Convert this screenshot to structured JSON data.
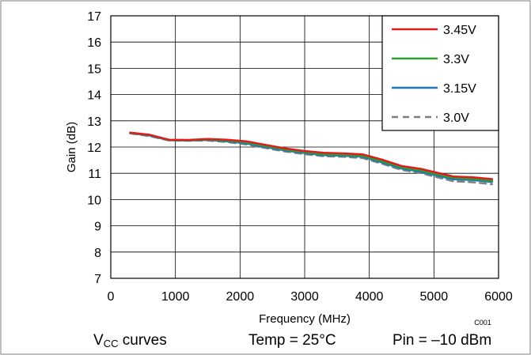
{
  "chart_data": {
    "type": "line",
    "xlabel": "Frequency (MHz)",
    "ylabel": "Gain (dB)",
    "xlim": [
      0,
      6000
    ],
    "ylim": [
      7,
      17
    ],
    "xticks": [
      "0",
      "1000",
      "2000",
      "3000",
      "4000",
      "5000",
      "6000"
    ],
    "yticks": [
      "7",
      "8",
      "9",
      "10",
      "11",
      "12",
      "13",
      "14",
      "15",
      "16",
      "17"
    ],
    "grid": true,
    "legend_position": "top-right",
    "figure_code": "C001",
    "series": [
      {
        "name": "3.45V",
        "color": "#e31a1c",
        "dash": "solid",
        "x": [
          300,
          600,
          900,
          1200,
          1500,
          1800,
          2100,
          2400,
          2700,
          3000,
          3300,
          3600,
          3900,
          4200,
          4500,
          4800,
          5000,
          5300,
          5600,
          5900
        ],
        "y": [
          12.55,
          12.47,
          12.28,
          12.27,
          12.31,
          12.28,
          12.22,
          12.08,
          11.95,
          11.85,
          11.78,
          11.76,
          11.72,
          11.52,
          11.28,
          11.17,
          11.05,
          10.88,
          10.85,
          10.78
        ]
      },
      {
        "name": "3.3V",
        "color": "#2ca02c",
        "dash": "solid",
        "x": [
          300,
          600,
          900,
          1200,
          1500,
          1800,
          2100,
          2400,
          2700,
          3000,
          3300,
          3600,
          3900,
          4200,
          4500,
          4800,
          5000,
          5300,
          5600,
          5900
        ],
        "y": [
          12.54,
          12.46,
          12.27,
          12.26,
          12.29,
          12.25,
          12.18,
          12.04,
          11.91,
          11.81,
          11.73,
          11.71,
          11.67,
          11.46,
          11.23,
          11.11,
          10.99,
          10.83,
          10.79,
          10.72
        ]
      },
      {
        "name": "3.15V",
        "color": "#1f77b4",
        "dash": "solid",
        "x": [
          300,
          600,
          900,
          1200,
          1500,
          1800,
          2100,
          2400,
          2700,
          3000,
          3300,
          3600,
          3900,
          4200,
          4500,
          4800,
          5000,
          5300,
          5600,
          5900
        ],
        "y": [
          12.53,
          12.44,
          12.26,
          12.25,
          12.27,
          12.22,
          12.14,
          12.0,
          11.87,
          11.77,
          11.69,
          11.67,
          11.63,
          11.41,
          11.18,
          11.06,
          10.94,
          10.77,
          10.74,
          10.67
        ]
      },
      {
        "name": "3.0V",
        "color": "#7f7f7f",
        "dash": "dashed",
        "x": [
          300,
          600,
          900,
          1200,
          1500,
          1800,
          2100,
          2400,
          2700,
          3000,
          3300,
          3600,
          3900,
          4200,
          4500,
          4800,
          5000,
          5300,
          5600,
          5900
        ],
        "y": [
          12.52,
          12.42,
          12.25,
          12.24,
          12.25,
          12.19,
          12.1,
          11.96,
          11.83,
          11.73,
          11.65,
          11.63,
          11.58,
          11.36,
          11.13,
          11.01,
          10.88,
          10.7,
          10.66,
          10.58
        ]
      }
    ]
  },
  "caption": {
    "vcc_main": "V",
    "vcc_sub": "CC",
    "vcc_rest": " curves",
    "temp": "Temp = 25°C",
    "pin": "Pin = –10 dBm"
  }
}
